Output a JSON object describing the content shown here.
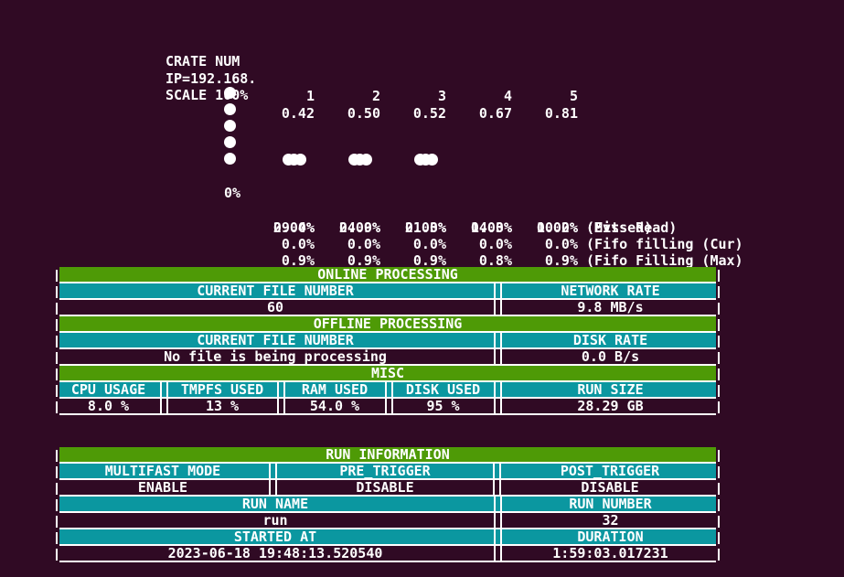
{
  "colors": {
    "background": "#300a24",
    "header_green": "#4e9a06",
    "header_teal": "#0b97a0",
    "text_white": "#ffffff"
  },
  "monitor": {
    "header": {
      "label": "CRATE NUM",
      "values": [
        "1",
        "2",
        "3",
        "4",
        "5"
      ]
    },
    "ip": {
      "label": "IP=192.168.",
      "values": [
        "0.42",
        "0.50",
        "0.52",
        "0.67",
        "0.81"
      ]
    },
    "scale_label": "SCALE 100%",
    "stats": [
      {
        "axis": "0%",
        "values": [
          "29.4%",
          "24.9%",
          "21.3%",
          "14.3%",
          "10.2%"
        ],
        "label": "(Evts Read)"
      },
      {
        "axis": "",
        "values": [
          "0.00%",
          "0.00%",
          "0.00%",
          "0.00%",
          "0.00%"
        ],
        "label": "(Missed)"
      },
      {
        "axis": "",
        "values": [
          "0.0%",
          "0.0%",
          "0.0%",
          "0.0%",
          "0.0%"
        ],
        "label": "(Fifo filling (Cur)"
      },
      {
        "axis": "",
        "values": [
          "0.9%",
          "0.9%",
          "0.9%",
          "0.8%",
          "0.9%"
        ],
        "label": "(Fifo Filling (Max)"
      }
    ],
    "dots": {
      "axis_column_dots": 5,
      "bar_clusters": [
        3,
        3,
        3,
        0,
        0
      ]
    }
  },
  "system_table": {
    "online_header": "ONLINE PROCESSING",
    "online_cols": [
      "CURRENT FILE NUMBER",
      "NETWORK RATE"
    ],
    "online_vals": [
      "60",
      "9.8 MB/s"
    ],
    "offline_header": "OFFLINE PROCESSING",
    "offline_cols": [
      "CURRENT FILE NUMBER",
      "DISK RATE"
    ],
    "offline_vals": [
      "No file is being processing",
      "0.0 B/s"
    ],
    "misc_header": "MISC",
    "misc_cols": [
      "CPU USAGE",
      "TMPFS USED",
      "RAM USED",
      "DISK USED",
      "RUN SIZE"
    ],
    "misc_vals": [
      "8.0 %",
      "13 %",
      "54.0 %",
      "95 %",
      "28.29 GB"
    ]
  },
  "run_table": {
    "header": "RUN INFORMATION",
    "trigger_cols": [
      "MULTIFAST MODE",
      "PRE_TRIGGER",
      "POST_TRIGGER"
    ],
    "trigger_vals": [
      "ENABLE",
      "DISABLE",
      "DISABLE"
    ],
    "name_cols": [
      "RUN NAME",
      "RUN NUMBER"
    ],
    "name_vals": [
      "run",
      "32"
    ],
    "time_cols": [
      "STARTED AT",
      "DURATION"
    ],
    "time_vals": [
      "2023-06-18 19:48:13.520540",
      "1:59:03.017231"
    ]
  }
}
